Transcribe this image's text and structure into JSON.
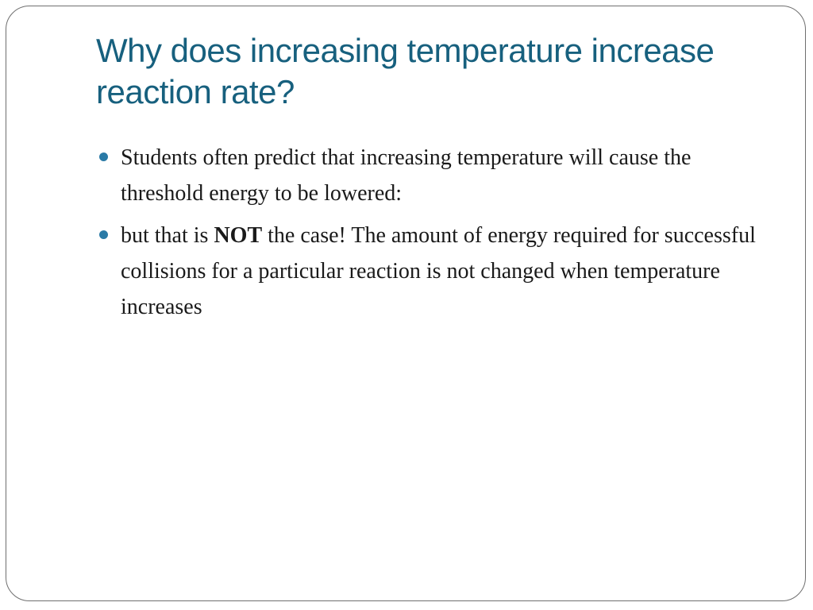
{
  "slide": {
    "title": "Why does increasing temperature increase reaction rate?",
    "bullets": [
      {
        "text": "Students often predict that increasing temperature will cause the threshold energy to be lowered:"
      },
      {
        "before": "but that is ",
        "emphasis": "NOT",
        "after": " the case! The amount of energy required for successful collisions for a particular reaction is not changed when temperature increases"
      }
    ]
  },
  "colors": {
    "title": "#17607e",
    "bullet_marker": "#2a7aa6",
    "body_text": "#1a1a1a",
    "frame_border": "#6f6f6f"
  },
  "icons": {
    "bullet_marker": "bullet-dot-icon"
  }
}
